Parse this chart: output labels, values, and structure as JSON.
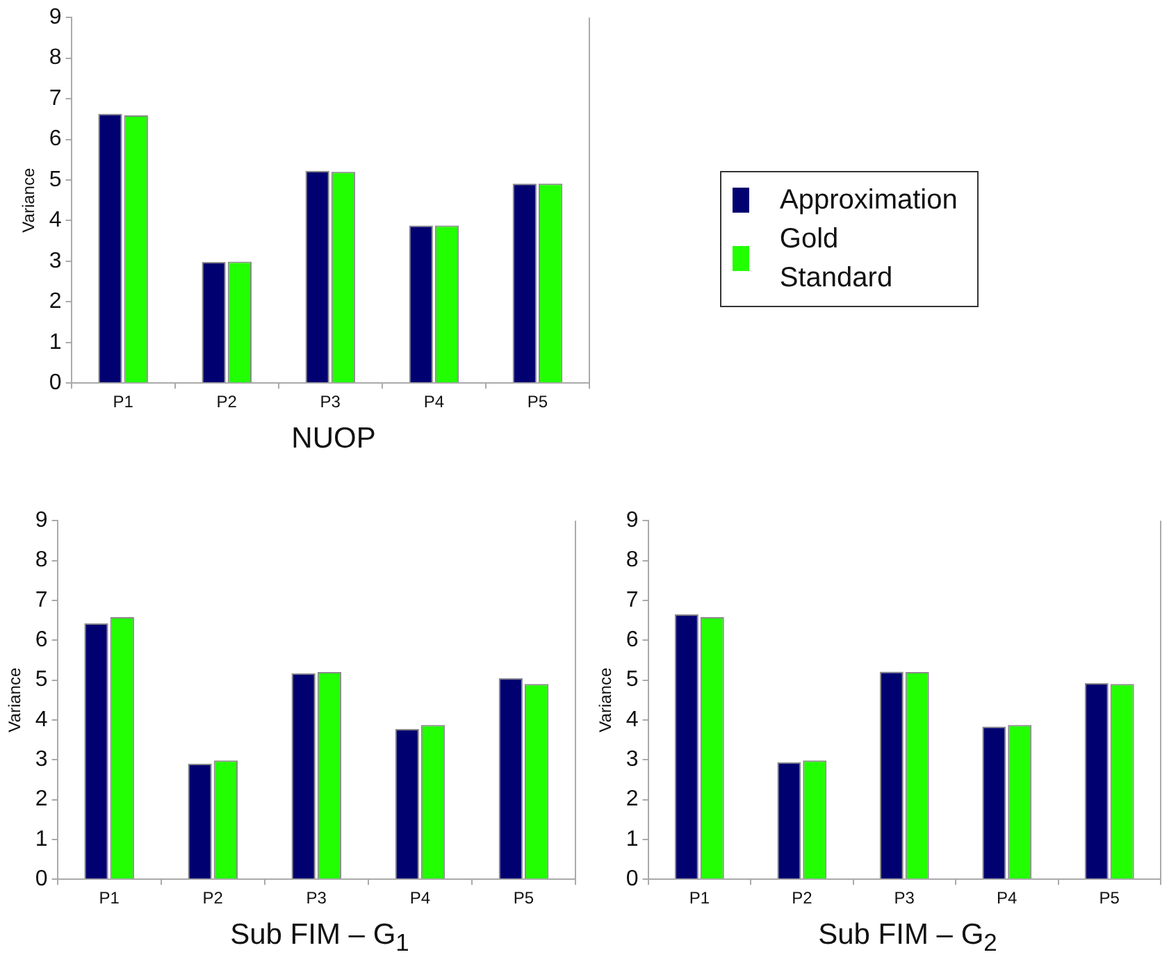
{
  "chart_data": [
    {
      "type": "bar",
      "title": "NUOP",
      "ylabel": "Variance",
      "categories": [
        "P1",
        "P2",
        "P3",
        "P4",
        "P5"
      ],
      "ylim": [
        0,
        9
      ],
      "yticks": [
        0,
        1,
        2,
        3,
        4,
        5,
        6,
        7,
        8,
        9
      ],
      "grid": false,
      "legend": "right",
      "series": [
        {
          "name": "Approximation",
          "color": "#000070",
          "values": [
            6.63,
            2.98,
            5.22,
            3.88,
            4.91
          ]
        },
        {
          "name": "Gold Standard",
          "color": "#22ff00",
          "values": [
            6.59,
            2.99,
            5.2,
            3.88,
            4.91
          ]
        }
      ]
    },
    {
      "type": "bar",
      "title": "Sub FIM – G$_{1}$",
      "ylabel": "Variance",
      "categories": [
        "P1",
        "P2",
        "P3",
        "P4",
        "P5"
      ],
      "ylim": [
        0,
        9
      ],
      "yticks": [
        0,
        1,
        2,
        3,
        4,
        5,
        6,
        7,
        8,
        9
      ],
      "grid": false,
      "series": [
        {
          "color": "#000070",
          "values": [
            6.42,
            2.9,
            5.17,
            3.77,
            5.05
          ]
        },
        {
          "color": "#22ff00",
          "values": [
            6.58,
            2.98,
            5.2,
            3.87,
            4.9
          ]
        }
      ]
    },
    {
      "type": "bar",
      "title": "Sub FIM – G$_{2}$",
      "ylabel": "Variance",
      "categories": [
        "P1",
        "P2",
        "P3",
        "P4",
        "P5"
      ],
      "ylim": [
        0,
        9
      ],
      "yticks": [
        0,
        1,
        2,
        3,
        4,
        5,
        6,
        7,
        8,
        9
      ],
      "grid": false,
      "series": [
        {
          "color": "#000070",
          "values": [
            6.65,
            2.94,
            5.21,
            3.83,
            4.92
          ]
        },
        {
          "color": "#22ff00",
          "values": [
            6.58,
            2.98,
            5.2,
            3.87,
            4.9
          ]
        }
      ]
    }
  ]
}
